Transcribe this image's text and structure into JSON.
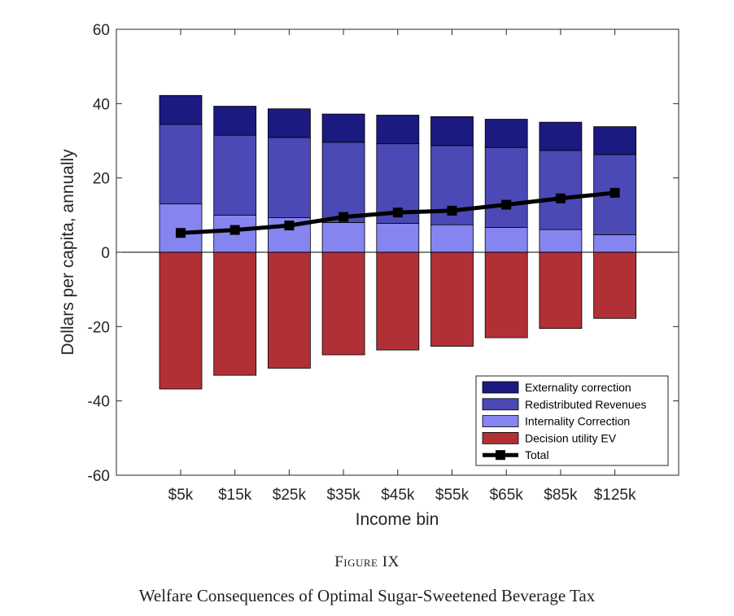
{
  "figure": {
    "label": "Figure IX",
    "caption": "Welfare Consequences of Optimal Sugar-Sweetened Beverage Tax"
  },
  "chart_data": {
    "type": "bar",
    "stacked": true,
    "xlabel": "Income bin",
    "ylabel": "Dollars per capita, annually",
    "ylim": [
      -60,
      60
    ],
    "yticks": [
      -60,
      -40,
      -20,
      0,
      20,
      40,
      60
    ],
    "categories": [
      "$5k",
      "$15k",
      "$25k",
      "$35k",
      "$45k",
      "$55k",
      "$65k",
      "$85k",
      "$125k"
    ],
    "series": [
      {
        "name": "Externality correction",
        "color": "#1a1a80",
        "kind": "bar",
        "values": [
          7.8,
          7.8,
          7.7,
          7.6,
          7.7,
          7.8,
          7.6,
          7.6,
          7.5
        ]
      },
      {
        "name": "Redistributed Revenues",
        "color": "#4a49b5",
        "kind": "bar",
        "values": [
          21.4,
          21.5,
          21.6,
          21.6,
          21.4,
          21.3,
          21.5,
          21.3,
          21.6
        ]
      },
      {
        "name": "Internality Correction",
        "color": "#8684ef",
        "kind": "bar",
        "values": [
          13.0,
          10.0,
          9.3,
          8.0,
          7.8,
          7.4,
          6.7,
          6.1,
          4.7
        ]
      },
      {
        "name": "Decision utility EV",
        "color": "#b13036",
        "kind": "bar",
        "values": [
          -36.8,
          -33.1,
          -31.2,
          -27.6,
          -26.3,
          -25.3,
          -23.0,
          -20.5,
          -17.8
        ]
      },
      {
        "name": "Total",
        "color": "#000000",
        "kind": "line",
        "values": [
          5.2,
          6.0,
          7.2,
          9.5,
          10.7,
          11.2,
          12.8,
          14.5,
          16.0
        ]
      }
    ],
    "legend_position": "bottom-right",
    "grid": false
  }
}
